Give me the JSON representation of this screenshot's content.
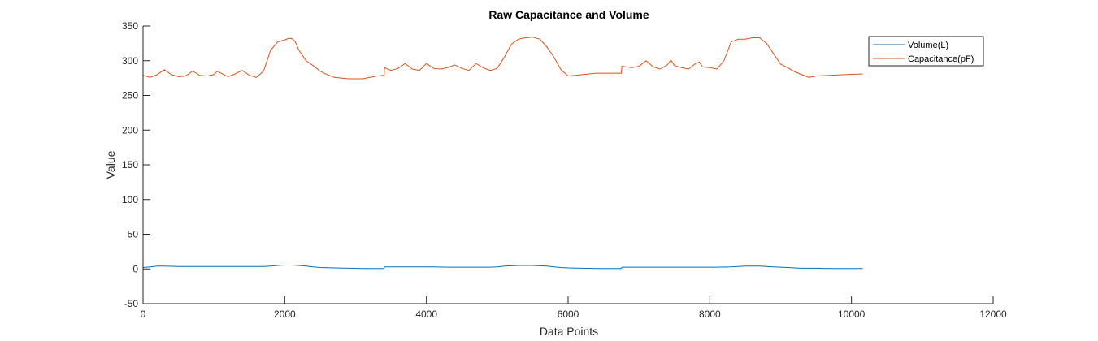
{
  "chart_data": {
    "type": "line",
    "title": "Raw Capacitance and Volume",
    "xlabel": "Data Points",
    "ylabel": "Value",
    "xlim": [
      0,
      12000
    ],
    "ylim": [
      -50,
      350
    ],
    "xticks": [
      0,
      2000,
      4000,
      6000,
      8000,
      10000,
      12000
    ],
    "yticks": [
      -50,
      0,
      50,
      100,
      150,
      200,
      250,
      300,
      350
    ],
    "grid": false,
    "legend_position": "top-right",
    "series": [
      {
        "name": "Volume(L)",
        "color": "#0072BD",
        "x": [
          0,
          100,
          200,
          300,
          500,
          800,
          1000,
          1300,
          1500,
          1700,
          1800,
          1900,
          2000,
          2100,
          2200,
          2300,
          2400,
          2500,
          2700,
          2900,
          3100,
          3300,
          3400,
          3410,
          3500,
          3700,
          3900,
          4100,
          4300,
          4400,
          4500,
          4700,
          4800,
          4900,
          5000,
          5100,
          5200,
          5300,
          5400,
          5500,
          5600,
          5700,
          5800,
          5900,
          6000,
          6200,
          6400,
          6600,
          6750,
          6760,
          6900,
          7100,
          7300,
          7500,
          7700,
          7900,
          8100,
          8300,
          8400,
          8500,
          8600,
          8700,
          8800,
          8900,
          9000,
          9100,
          9200,
          9300,
          9400,
          9500,
          9700,
          9900,
          10160
        ],
        "y": [
          2,
          3,
          4,
          4,
          3.5,
          3.5,
          3.5,
          3.5,
          3.5,
          3.5,
          4,
          5,
          5.5,
          5.5,
          5,
          4,
          3,
          2,
          1.5,
          1,
          0.5,
          0.5,
          0.5,
          3,
          3,
          3,
          3,
          3,
          2.5,
          2.5,
          2.5,
          2.5,
          2.5,
          2.5,
          3,
          4,
          4.5,
          5,
          5,
          5,
          4.5,
          4,
          3,
          2,
          1.5,
          1,
          0.5,
          0.5,
          0.5,
          2.5,
          2.5,
          2.5,
          2.5,
          2.5,
          2.5,
          2.5,
          2.5,
          3,
          3.5,
          4,
          4,
          4,
          3.5,
          3,
          2.5,
          2,
          1.5,
          1,
          1,
          1,
          0.5,
          0.5,
          0.5
        ]
      },
      {
        "name": "Capacitance(pF)",
        "color": "#D95319",
        "x": [
          0,
          100,
          200,
          300,
          400,
          500,
          600,
          700,
          800,
          900,
          1000,
          1050,
          1100,
          1200,
          1300,
          1400,
          1500,
          1600,
          1700,
          1800,
          1900,
          2000,
          2050,
          2100,
          2150,
          2200,
          2300,
          2400,
          2500,
          2600,
          2700,
          2900,
          3100,
          3300,
          3400,
          3410,
          3500,
          3600,
          3700,
          3800,
          3900,
          4000,
          4100,
          4200,
          4300,
          4400,
          4500,
          4600,
          4700,
          4800,
          4900,
          5000,
          5100,
          5200,
          5300,
          5400,
          5500,
          5600,
          5700,
          5800,
          5900,
          6000,
          6200,
          6400,
          6600,
          6750,
          6760,
          6900,
          7000,
          7100,
          7200,
          7300,
          7400,
          7450,
          7500,
          7600,
          7700,
          7800,
          7850,
          7900,
          8000,
          8100,
          8200,
          8300,
          8400,
          8500,
          8600,
          8700,
          8800,
          8900,
          9000,
          9100,
          9200,
          9300,
          9400,
          9500,
          9700,
          9900,
          10160
        ],
        "y": [
          279,
          276,
          280,
          287,
          280,
          277,
          278,
          285,
          279,
          278,
          280,
          285,
          282,
          277,
          281,
          286,
          279,
          276,
          285,
          315,
          327,
          330,
          332,
          332,
          327,
          315,
          300,
          293,
          285,
          280,
          276,
          274,
          274,
          278,
          279,
          290,
          286,
          289,
          296,
          288,
          286,
          296,
          289,
          288,
          290,
          294,
          289,
          286,
          296,
          290,
          286,
          289,
          305,
          324,
          331,
          333,
          334,
          331,
          320,
          305,
          287,
          278,
          280,
          282,
          282,
          282,
          292,
          290,
          292,
          300,
          291,
          288,
          294,
          301,
          293,
          290,
          288,
          296,
          298,
          291,
          290,
          288,
          300,
          327,
          331,
          331,
          333,
          333,
          325,
          310,
          295,
          290,
          284,
          280,
          276,
          278,
          279,
          280,
          281
        ]
      }
    ]
  }
}
